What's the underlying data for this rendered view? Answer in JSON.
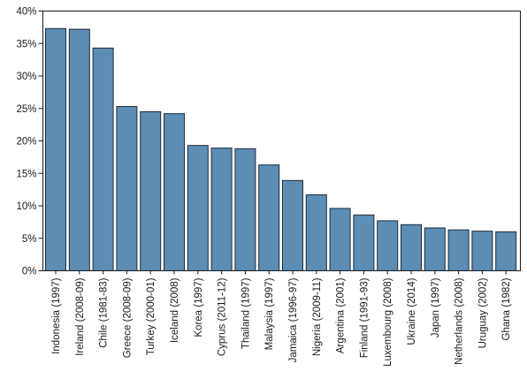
{
  "chart_data": {
    "type": "bar",
    "title": "",
    "xlabel": "",
    "ylabel": "",
    "ylim": [
      0,
      40
    ],
    "yticks": [
      0,
      5,
      10,
      15,
      20,
      25,
      30,
      35,
      40
    ],
    "ytick_labels": [
      "0%",
      "5%",
      "10%",
      "15%",
      "20%",
      "25%",
      "30%",
      "35%",
      "40%"
    ],
    "grid": false,
    "bar_color": "#5b8db5",
    "bar_edge_color": "#1f2d3a",
    "categories": [
      "Indonesia (1997)",
      "Ireland (2008-09)",
      "Chile (1981-83)",
      "Greece (2008-09)",
      "Turkey (2000-01)",
      "Iceland (2008)",
      "Korea (1997)",
      "Cyprus (2011-12)",
      "Thailand (1997)",
      "Malaysia (1997)",
      "Jamaica (1996-97)",
      "Nigeria (2009-11)",
      "Argentina (2001)",
      "Finland (1991-93)",
      "Luxembourg (2008)",
      "Ukraine (2014)",
      "Japan (1997)",
      "Netherlands (2008)",
      "Uruguay (2002)",
      "Ghana (1982)"
    ],
    "values": [
      37.3,
      37.2,
      34.3,
      25.3,
      24.5,
      24.2,
      19.3,
      18.9,
      18.8,
      16.3,
      13.9,
      11.7,
      9.6,
      8.6,
      7.7,
      7.1,
      6.6,
      6.3,
      6.1,
      6.0
    ]
  }
}
